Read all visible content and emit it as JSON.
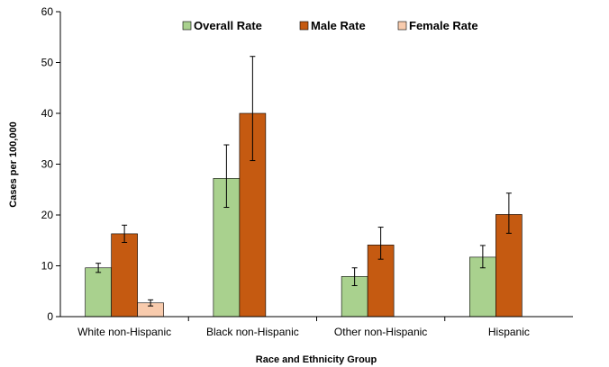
{
  "chart_data": {
    "type": "bar",
    "xlabel": "Race and Ethnicity Group",
    "ylabel": "Cases per 100,000",
    "ylim": [
      0,
      60
    ],
    "yticks": [
      0,
      10,
      20,
      30,
      40,
      50,
      60
    ],
    "grid": false,
    "legend_position": "top",
    "categories": [
      "White non-Hispanic",
      "Black non-Hispanic",
      "Other non-Hispanic",
      "Hispanic"
    ],
    "series": [
      {
        "name": "Overall Rate",
        "color": "#a9d18e",
        "values": [
          9.6,
          27.2,
          7.9,
          11.7
        ],
        "err_low": [
          8.7,
          21.5,
          6.1,
          9.6
        ],
        "err_high": [
          10.5,
          33.8,
          9.6,
          14.0
        ]
      },
      {
        "name": "Male Rate",
        "color": "#c55a11",
        "values": [
          16.3,
          40.0,
          14.1,
          20.1
        ],
        "err_low": [
          14.6,
          30.7,
          11.3,
          16.4
        ],
        "err_high": [
          18.0,
          51.2,
          17.6,
          24.3
        ]
      },
      {
        "name": "Female Rate",
        "color": "#f8cbad",
        "values": [
          2.7,
          0,
          0,
          0
        ],
        "err_low": [
          2.1,
          0,
          0,
          0
        ],
        "err_high": [
          3.3,
          0,
          0,
          0
        ]
      }
    ]
  }
}
